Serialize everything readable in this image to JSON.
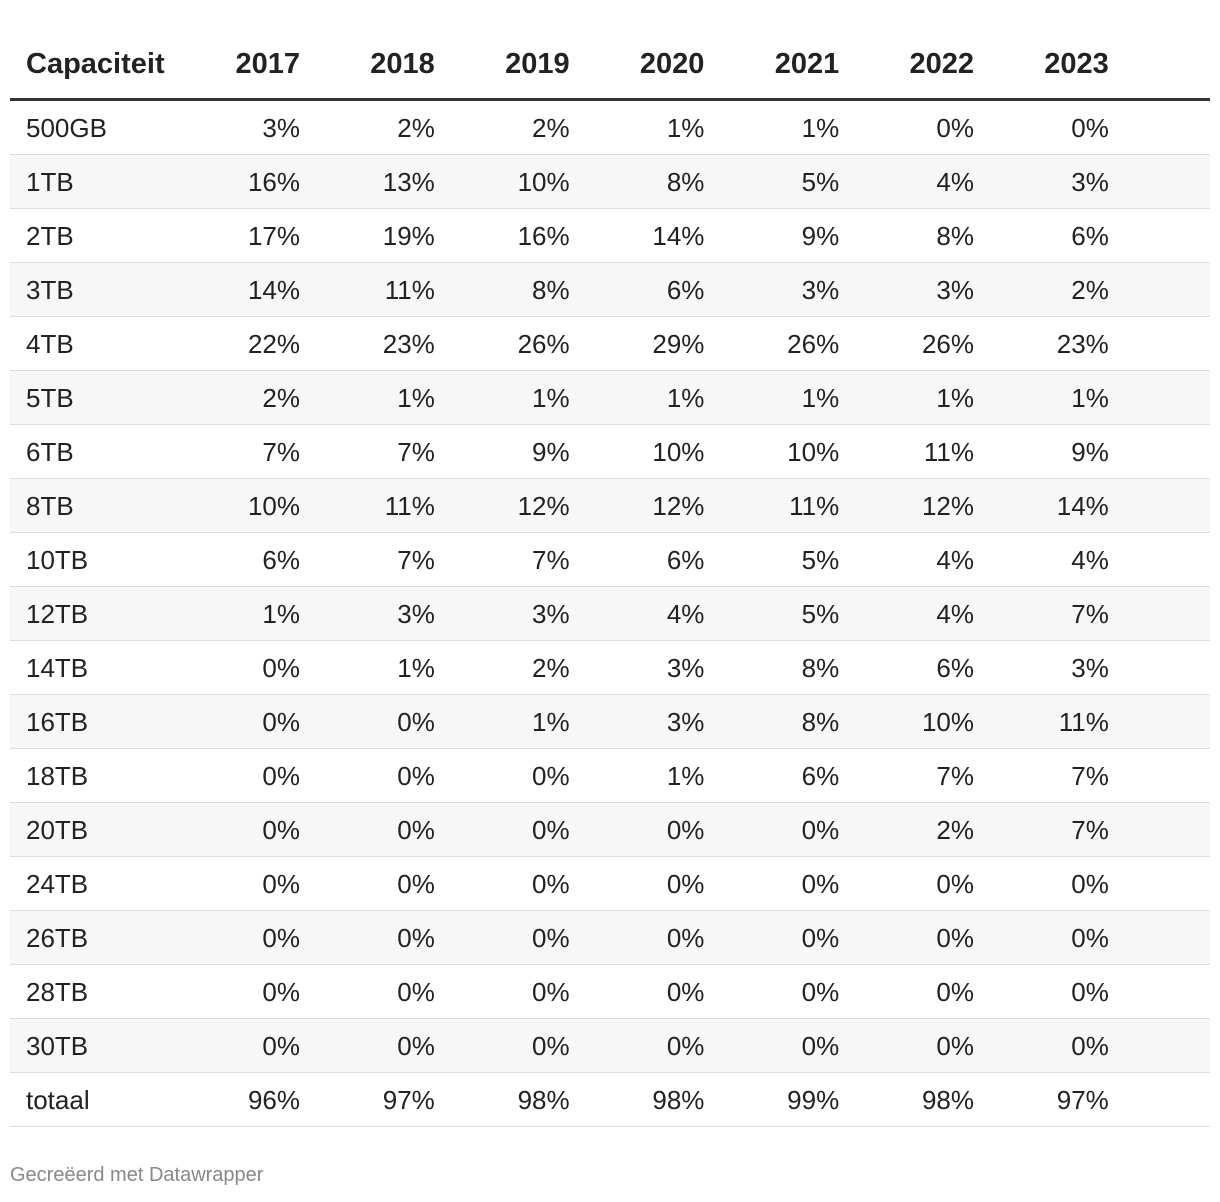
{
  "table": {
    "columns": [
      "Capaciteit",
      "2017",
      "2018",
      "2019",
      "2020",
      "2021",
      "2022",
      "2023"
    ],
    "rows": [
      [
        "500GB",
        "3%",
        "2%",
        "2%",
        "1%",
        "1%",
        "0%",
        "0%"
      ],
      [
        "1TB",
        "16%",
        "13%",
        "10%",
        "8%",
        "5%",
        "4%",
        "3%"
      ],
      [
        "2TB",
        "17%",
        "19%",
        "16%",
        "14%",
        "9%",
        "8%",
        "6%"
      ],
      [
        "3TB",
        "14%",
        "11%",
        "8%",
        "6%",
        "3%",
        "3%",
        "2%"
      ],
      [
        "4TB",
        "22%",
        "23%",
        "26%",
        "29%",
        "26%",
        "26%",
        "23%"
      ],
      [
        "5TB",
        "2%",
        "1%",
        "1%",
        "1%",
        "1%",
        "1%",
        "1%"
      ],
      [
        "6TB",
        "7%",
        "7%",
        "9%",
        "10%",
        "10%",
        "11%",
        "9%"
      ],
      [
        "8TB",
        "10%",
        "11%",
        "12%",
        "12%",
        "11%",
        "12%",
        "14%"
      ],
      [
        "10TB",
        "6%",
        "7%",
        "7%",
        "6%",
        "5%",
        "4%",
        "4%"
      ],
      [
        "12TB",
        "1%",
        "3%",
        "3%",
        "4%",
        "5%",
        "4%",
        "7%"
      ],
      [
        "14TB",
        "0%",
        "1%",
        "2%",
        "3%",
        "8%",
        "6%",
        "3%"
      ],
      [
        "16TB",
        "0%",
        "0%",
        "1%",
        "3%",
        "8%",
        "10%",
        "11%"
      ],
      [
        "18TB",
        "0%",
        "0%",
        "0%",
        "1%",
        "6%",
        "7%",
        "7%"
      ],
      [
        "20TB",
        "0%",
        "0%",
        "0%",
        "0%",
        "0%",
        "2%",
        "7%"
      ],
      [
        "24TB",
        "0%",
        "0%",
        "0%",
        "0%",
        "0%",
        "0%",
        "0%"
      ],
      [
        "26TB",
        "0%",
        "0%",
        "0%",
        "0%",
        "0%",
        "0%",
        "0%"
      ],
      [
        "28TB",
        "0%",
        "0%",
        "0%",
        "0%",
        "0%",
        "0%",
        "0%"
      ],
      [
        "30TB",
        "0%",
        "0%",
        "0%",
        "0%",
        "0%",
        "0%",
        "0%"
      ],
      [
        "totaal",
        "96%",
        "97%",
        "98%",
        "98%",
        "99%",
        "98%",
        "97%"
      ]
    ]
  },
  "footer": "Gecreëerd met Datawrapper"
}
